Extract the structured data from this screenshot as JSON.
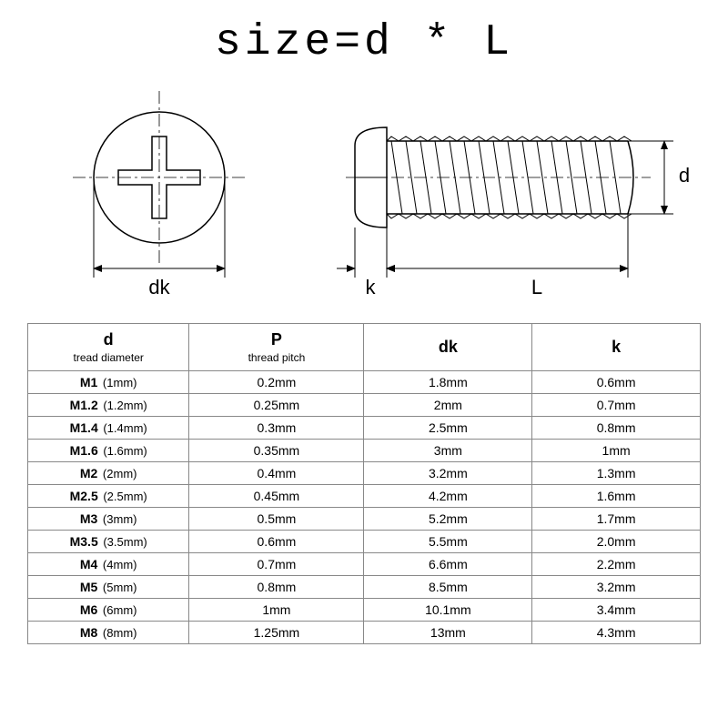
{
  "title": "size=d * L",
  "diagram": {
    "label_dk": "dk",
    "label_k": "k",
    "label_L": "L",
    "label_d": "d",
    "line_color": "#000000",
    "line_width_thin": 1,
    "line_width_med": 1.5,
    "font_size_label": 22,
    "font_family": "Arial"
  },
  "table": {
    "background": "#ffffff",
    "border_color": "#888888",
    "font_size_cell": 14,
    "font_size_header": 18,
    "font_size_subheader": 12,
    "columns": [
      {
        "key": "d",
        "label": "d",
        "sub": "tread diameter"
      },
      {
        "key": "P",
        "label": "P",
        "sub": "thread pitch"
      },
      {
        "key": "dk",
        "label": "dk",
        "sub": ""
      },
      {
        "key": "k",
        "label": "k",
        "sub": ""
      }
    ],
    "rows": [
      {
        "d_size": "M1",
        "d_mm": "(1mm)",
        "P": "0.2mm",
        "dk": "1.8mm",
        "k": "0.6mm"
      },
      {
        "d_size": "M1.2",
        "d_mm": "(1.2mm)",
        "P": "0.25mm",
        "dk": "2mm",
        "k": "0.7mm"
      },
      {
        "d_size": "M1.4",
        "d_mm": "(1.4mm)",
        "P": "0.3mm",
        "dk": "2.5mm",
        "k": "0.8mm"
      },
      {
        "d_size": "M1.6",
        "d_mm": "(1.6mm)",
        "P": "0.35mm",
        "dk": "3mm",
        "k": "1mm"
      },
      {
        "d_size": "M2",
        "d_mm": "(2mm)",
        "P": "0.4mm",
        "dk": "3.2mm",
        "k": "1.3mm"
      },
      {
        "d_size": "M2.5",
        "d_mm": "(2.5mm)",
        "P": "0.45mm",
        "dk": "4.2mm",
        "k": "1.6mm"
      },
      {
        "d_size": "M3",
        "d_mm": "(3mm)",
        "P": "0.5mm",
        "dk": "5.2mm",
        "k": "1.7mm"
      },
      {
        "d_size": "M3.5",
        "d_mm": "(3.5mm)",
        "P": "0.6mm",
        "dk": "5.5mm",
        "k": "2.0mm"
      },
      {
        "d_size": "M4",
        "d_mm": "(4mm)",
        "P": "0.7mm",
        "dk": "6.6mm",
        "k": "2.2mm"
      },
      {
        "d_size": "M5",
        "d_mm": "(5mm)",
        "P": "0.8mm",
        "dk": "8.5mm",
        "k": "3.2mm"
      },
      {
        "d_size": "M6",
        "d_mm": "(6mm)",
        "P": "1mm",
        "dk": "10.1mm",
        "k": "3.4mm"
      },
      {
        "d_size": "M8",
        "d_mm": "(8mm)",
        "P": "1.25mm",
        "dk": "13mm",
        "k": "4.3mm"
      }
    ]
  }
}
